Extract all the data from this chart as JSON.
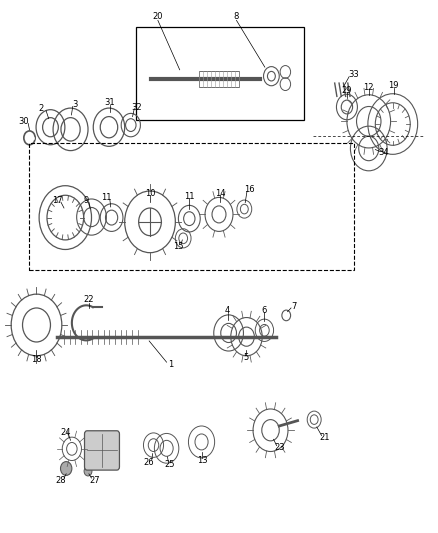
{
  "bg_color": "#ffffff",
  "lc": "#000000",
  "pc": "#555555",
  "fig_width": 4.38,
  "fig_height": 5.33
}
